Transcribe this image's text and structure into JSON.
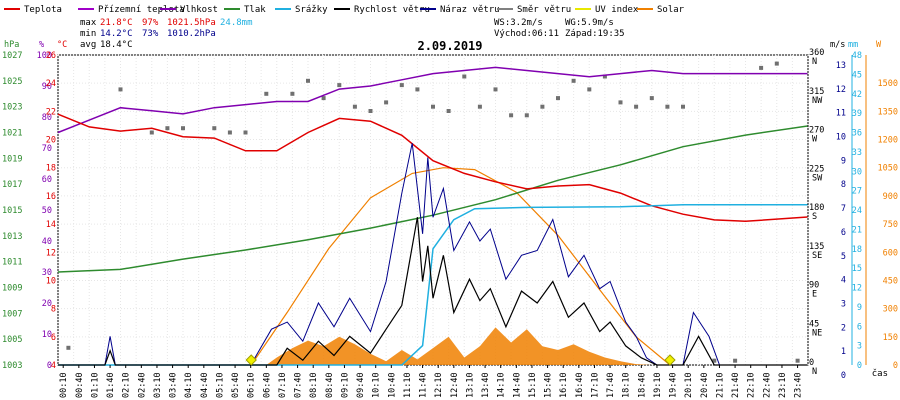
{
  "chart_data": {
    "type": "line",
    "title": "2.09.2019",
    "x_unit_label": "čas",
    "x_ticks": [
      "00:10",
      "00:40",
      "01:10",
      "01:40",
      "02:10",
      "02:40",
      "03:10",
      "03:40",
      "04:10",
      "04:40",
      "05:10",
      "05:40",
      "06:10",
      "06:40",
      "07:10",
      "07:40",
      "08:10",
      "08:40",
      "09:10",
      "09:40",
      "10:10",
      "10:40",
      "11:10",
      "11:40",
      "12:10",
      "12:40",
      "13:10",
      "13:40",
      "14:10",
      "14:40",
      "15:10",
      "15:40",
      "16:10",
      "16:40",
      "17:10",
      "17:40",
      "18:10",
      "18:40",
      "19:10",
      "19:40",
      "20:10",
      "20:40",
      "21:10",
      "21:40",
      "22:10",
      "22:40",
      "23:10",
      "23:40"
    ],
    "legend": [
      {
        "name": "Teplota",
        "color": "#e00000"
      },
      {
        "name": "Přízemní teplota",
        "color": "#a000c8"
      },
      {
        "name": "Vlhkost",
        "color": "#8000b0"
      },
      {
        "name": "Tlak",
        "color": "#2e8b2e"
      },
      {
        "name": "Srážky",
        "color": "#20b0e0"
      },
      {
        "name": "Rychlost větru",
        "color": "#000000"
      },
      {
        "name": "Náraz větru",
        "color": "#00008b"
      },
      {
        "name": "Směr větru",
        "color": "#808080"
      },
      {
        "name": "UV index",
        "color": "#e8e800"
      },
      {
        "name": "Solar",
        "color": "#f08000"
      }
    ],
    "stats": {
      "max": {
        "label": "max",
        "temp": "21.8°C",
        "hum": "97%",
        "press": "1021.5hPa",
        "rain": "24.8mm"
      },
      "min": {
        "label": "min",
        "temp": "14.2°C",
        "hum": "73%",
        "press": "1010.2hPa"
      },
      "avg": {
        "label": "avg",
        "temp": "18.4°C"
      },
      "ws": "WS:3.2m/s",
      "wg": "WG:5.9m/s",
      "sunrise": "Východ:06:11",
      "sunset": "Západ:19:35"
    },
    "axes": {
      "hpa": {
        "unit": "hPa",
        "ticks": [
          "1027",
          "1025",
          "1023",
          "1021",
          "1019",
          "1017",
          "1015",
          "1013",
          "1011",
          "1009",
          "1007",
          "1005",
          "1003"
        ]
      },
      "pct": {
        "unit": "%",
        "ticks": [
          "100",
          "90",
          "80",
          "70",
          "60",
          "50",
          "40",
          "30",
          "20",
          "10",
          "0"
        ]
      },
      "degc": {
        "unit": "°C",
        "ticks": [
          "26",
          "24",
          "22",
          "20",
          "18",
          "16",
          "14",
          "12",
          "10",
          "8",
          "6",
          "4"
        ]
      },
      "dir": {
        "ticks": [
          {
            "v": "360",
            "d": "N"
          },
          {
            "v": "315",
            "d": "NW"
          },
          {
            "v": "270",
            "d": "W"
          },
          {
            "v": "225",
            "d": "SW"
          },
          {
            "v": "180",
            "d": "S"
          },
          {
            "v": "135",
            "d": "SE"
          },
          {
            "v": "90",
            "d": "E"
          },
          {
            "v": "45",
            "d": "NE"
          },
          {
            "v": "0",
            "d": "N"
          }
        ]
      },
      "ms": {
        "unit": "m/s",
        "ticks": [
          "13",
          "12",
          "11",
          "10",
          "9",
          "8",
          "7",
          "6",
          "5",
          "4",
          "3",
          "2",
          "1",
          "0"
        ]
      },
      "mm": {
        "unit": "mm",
        "ticks": [
          "48",
          "45",
          "42",
          "39",
          "36",
          "33",
          "30",
          "27",
          "24",
          "21",
          "18",
          "15",
          "12",
          "9",
          "6",
          "3",
          "0"
        ]
      },
      "w": {
        "unit": "W",
        "ticks": [
          "1500",
          "1350",
          "1200",
          "1050",
          "900",
          "750",
          "600",
          "450",
          "300",
          "150",
          "0"
        ]
      }
    },
    "series": {
      "temperature_c": [
        [
          0,
          21.8
        ],
        [
          60,
          20.9
        ],
        [
          120,
          20.6
        ],
        [
          180,
          20.8
        ],
        [
          240,
          20.2
        ],
        [
          300,
          20.1
        ],
        [
          360,
          19.2
        ],
        [
          420,
          19.2
        ],
        [
          480,
          20.5
        ],
        [
          540,
          21.5
        ],
        [
          600,
          21.3
        ],
        [
          660,
          20.3
        ],
        [
          720,
          18.5
        ],
        [
          780,
          17.6
        ],
        [
          840,
          17.0
        ],
        [
          900,
          16.5
        ],
        [
          960,
          16.7
        ],
        [
          1020,
          16.8
        ],
        [
          1080,
          16.2
        ],
        [
          1140,
          15.3
        ],
        [
          1200,
          14.7
        ],
        [
          1260,
          14.3
        ],
        [
          1320,
          14.2
        ],
        [
          1439,
          14.5
        ]
      ],
      "humidity_pct": [
        [
          0,
          75
        ],
        [
          60,
          79
        ],
        [
          120,
          83
        ],
        [
          180,
          82
        ],
        [
          240,
          81
        ],
        [
          300,
          83
        ],
        [
          360,
          84
        ],
        [
          420,
          85
        ],
        [
          480,
          85
        ],
        [
          540,
          89
        ],
        [
          600,
          90
        ],
        [
          660,
          92
        ],
        [
          720,
          94
        ],
        [
          780,
          95
        ],
        [
          840,
          96
        ],
        [
          900,
          95
        ],
        [
          960,
          94
        ],
        [
          1020,
          93
        ],
        [
          1080,
          94
        ],
        [
          1140,
          95
        ],
        [
          1200,
          94
        ],
        [
          1260,
          94
        ],
        [
          1320,
          94
        ],
        [
          1439,
          94
        ]
      ],
      "pressure_hpa": [
        [
          0,
          1010.2
        ],
        [
          120,
          1010.4
        ],
        [
          240,
          1011.2
        ],
        [
          360,
          1011.9
        ],
        [
          480,
          1012.7
        ],
        [
          600,
          1013.6
        ],
        [
          720,
          1014.6
        ],
        [
          840,
          1015.8
        ],
        [
          960,
          1017.3
        ],
        [
          1080,
          1018.5
        ],
        [
          1200,
          1019.9
        ],
        [
          1320,
          1020.8
        ],
        [
          1439,
          1021.5
        ]
      ],
      "rain_mm": [
        [
          0,
          0
        ],
        [
          660,
          0
        ],
        [
          700,
          3
        ],
        [
          720,
          18
        ],
        [
          760,
          22.5
        ],
        [
          800,
          24.2
        ],
        [
          900,
          24.4
        ],
        [
          1080,
          24.5
        ],
        [
          1200,
          24.8
        ],
        [
          1439,
          24.8
        ]
      ],
      "wind_speed_ms": [
        [
          0,
          0
        ],
        [
          90,
          0
        ],
        [
          100,
          0.6
        ],
        [
          110,
          0
        ],
        [
          420,
          0
        ],
        [
          440,
          0.7
        ],
        [
          470,
          0.2
        ],
        [
          500,
          1.0
        ],
        [
          530,
          0.4
        ],
        [
          560,
          1.2
        ],
        [
          600,
          0.5
        ],
        [
          630,
          1.5
        ],
        [
          660,
          2.5
        ],
        [
          690,
          6.2
        ],
        [
          700,
          3.5
        ],
        [
          710,
          5.0
        ],
        [
          720,
          2.8
        ],
        [
          740,
          4.6
        ],
        [
          760,
          2.2
        ],
        [
          790,
          3.6
        ],
        [
          810,
          2.7
        ],
        [
          830,
          3.2
        ],
        [
          860,
          1.6
        ],
        [
          890,
          3.1
        ],
        [
          920,
          2.6
        ],
        [
          950,
          3.5
        ],
        [
          980,
          2.0
        ],
        [
          1010,
          2.6
        ],
        [
          1040,
          1.4
        ],
        [
          1060,
          1.8
        ],
        [
          1090,
          0.8
        ],
        [
          1120,
          0.3
        ],
        [
          1150,
          0
        ],
        [
          1200,
          0
        ],
        [
          1230,
          1.2
        ],
        [
          1260,
          0
        ],
        [
          1439,
          0
        ]
      ],
      "wind_gust_ms": [
        [
          0,
          0
        ],
        [
          90,
          0
        ],
        [
          100,
          1.2
        ],
        [
          110,
          0
        ],
        [
          370,
          0
        ],
        [
          410,
          1.5
        ],
        [
          440,
          1.8
        ],
        [
          470,
          1.0
        ],
        [
          500,
          2.6
        ],
        [
          530,
          1.6
        ],
        [
          560,
          2.8
        ],
        [
          600,
          1.4
        ],
        [
          630,
          3.5
        ],
        [
          660,
          7.2
        ],
        [
          680,
          9.3
        ],
        [
          700,
          5.5
        ],
        [
          710,
          8.7
        ],
        [
          720,
          6.2
        ],
        [
          740,
          7.4
        ],
        [
          760,
          4.8
        ],
        [
          790,
          6.0
        ],
        [
          810,
          5.2
        ],
        [
          830,
          5.7
        ],
        [
          860,
          3.6
        ],
        [
          890,
          4.6
        ],
        [
          920,
          4.8
        ],
        [
          950,
          6.1
        ],
        [
          980,
          3.7
        ],
        [
          1010,
          4.6
        ],
        [
          1040,
          3.2
        ],
        [
          1060,
          3.5
        ],
        [
          1090,
          1.8
        ],
        [
          1110,
          1.2
        ],
        [
          1130,
          0.3
        ],
        [
          1150,
          0
        ],
        [
          1200,
          0
        ],
        [
          1220,
          2.2
        ],
        [
          1250,
          1.2
        ],
        [
          1270,
          0
        ],
        [
          1439,
          0
        ]
      ],
      "wind_dir_deg": [
        [
          20,
          20
        ],
        [
          120,
          320
        ],
        [
          180,
          270
        ],
        [
          210,
          275
        ],
        [
          240,
          275
        ],
        [
          300,
          275
        ],
        [
          330,
          270
        ],
        [
          360,
          270
        ],
        [
          400,
          315
        ],
        [
          450,
          315
        ],
        [
          480,
          330
        ],
        [
          510,
          310
        ],
        [
          540,
          325
        ],
        [
          570,
          300
        ],
        [
          600,
          295
        ],
        [
          630,
          305
        ],
        [
          660,
          325
        ],
        [
          690,
          320
        ],
        [
          720,
          300
        ],
        [
          750,
          295
        ],
        [
          780,
          335
        ],
        [
          810,
          300
        ],
        [
          840,
          320
        ],
        [
          870,
          290
        ],
        [
          900,
          290
        ],
        [
          930,
          300
        ],
        [
          960,
          310
        ],
        [
          990,
          330
        ],
        [
          1020,
          320
        ],
        [
          1050,
          335
        ],
        [
          1080,
          305
        ],
        [
          1110,
          300
        ],
        [
          1140,
          310
        ],
        [
          1170,
          300
        ],
        [
          1200,
          300
        ],
        [
          1260,
          5
        ],
        [
          1300,
          5
        ],
        [
          1350,
          345
        ],
        [
          1380,
          350
        ],
        [
          1420,
          5
        ]
      ],
      "solar_w": [
        [
          0,
          0
        ],
        [
          400,
          0
        ],
        [
          420,
          40
        ],
        [
          450,
          90
        ],
        [
          480,
          130
        ],
        [
          510,
          100
        ],
        [
          540,
          150
        ],
        [
          570,
          110
        ],
        [
          600,
          60
        ],
        [
          630,
          20
        ],
        [
          660,
          80
        ],
        [
          690,
          30
        ],
        [
          720,
          90
        ],
        [
          750,
          150
        ],
        [
          780,
          40
        ],
        [
          810,
          100
        ],
        [
          840,
          200
        ],
        [
          870,
          120
        ],
        [
          900,
          190
        ],
        [
          930,
          100
        ],
        [
          960,
          80
        ],
        [
          990,
          110
        ],
        [
          1020,
          70
        ],
        [
          1050,
          40
        ],
        [
          1080,
          20
        ],
        [
          1110,
          5
        ],
        [
          1140,
          0
        ],
        [
          1439,
          0
        ]
      ],
      "solar_theoretical_w": [
        [
          371,
          0
        ],
        [
          440,
          280
        ],
        [
          520,
          620
        ],
        [
          600,
          890
        ],
        [
          680,
          1020
        ],
        [
          740,
          1050
        ],
        [
          800,
          1040
        ],
        [
          880,
          920
        ],
        [
          960,
          690
        ],
        [
          1040,
          400
        ],
        [
          1110,
          150
        ],
        [
          1175,
          0
        ]
      ],
      "uv_points": [
        [
          371,
          0
        ],
        [
          1175,
          0
        ]
      ]
    }
  }
}
